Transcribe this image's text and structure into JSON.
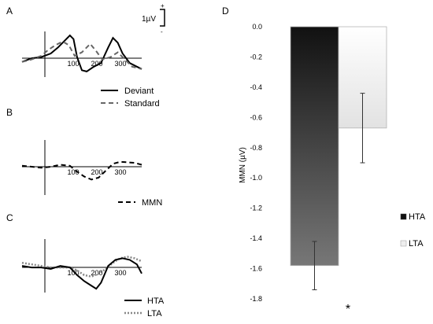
{
  "chart_data": [
    {
      "panel": "A",
      "type": "line",
      "panel_label": "A",
      "scale_bar": {
        "label": "1µV",
        "plus": "+",
        "minus": "-"
      },
      "x_ticks": [
        "100",
        "200",
        "300"
      ],
      "xlim": [
        -100,
        400
      ],
      "ylim": [
        -1.6,
        2.6
      ],
      "series": [
        {
          "name": "Deviant",
          "color": "#000000",
          "dash": "solid",
          "points": [
            [
              -100,
              -0.2
            ],
            [
              -60,
              0.1
            ],
            [
              -20,
              0.2
            ],
            [
              20,
              0.5
            ],
            [
              50,
              1.0
            ],
            [
              80,
              1.6
            ],
            [
              100,
              2.0
            ],
            [
              115,
              1.7
            ],
            [
              130,
              0.2
            ],
            [
              150,
              -0.9
            ],
            [
              170,
              -1.0
            ],
            [
              200,
              -0.6
            ],
            [
              230,
              -0.3
            ],
            [
              260,
              1.0
            ],
            [
              280,
              1.8
            ],
            [
              300,
              1.4
            ],
            [
              320,
              0.5
            ],
            [
              350,
              -0.3
            ],
            [
              380,
              -0.6
            ],
            [
              400,
              -0.8
            ]
          ]
        },
        {
          "name": "Standard",
          "color": "#666666",
          "dash": "dash",
          "points": [
            [
              -100,
              -0.2
            ],
            [
              -60,
              0.0
            ],
            [
              -20,
              0.3
            ],
            [
              10,
              0.8
            ],
            [
              40,
              1.2
            ],
            [
              70,
              1.5
            ],
            [
              95,
              1.2
            ],
            [
              120,
              0.3
            ],
            [
              150,
              0.6
            ],
            [
              185,
              1.3
            ],
            [
              210,
              0.7
            ],
            [
              235,
              0.0
            ],
            [
              270,
              0.2
            ],
            [
              300,
              0.6
            ],
            [
              330,
              0.0
            ],
            [
              360,
              -0.6
            ],
            [
              400,
              -0.8
            ]
          ]
        }
      ]
    },
    {
      "panel": "B",
      "type": "line",
      "panel_label": "B",
      "x_ticks": [
        "100",
        "200",
        "300"
      ],
      "xlim": [
        -100,
        400
      ],
      "ylim": [
        -1.6,
        1.6
      ],
      "series": [
        {
          "name": "MMN",
          "color": "#000000",
          "dash": "dash",
          "points": [
            [
              -100,
              0.1
            ],
            [
              -60,
              0.0
            ],
            [
              -20,
              -0.1
            ],
            [
              20,
              0.0
            ],
            [
              60,
              0.2
            ],
            [
              100,
              0.1
            ],
            [
              130,
              -0.5
            ],
            [
              160,
              -1.0
            ],
            [
              190,
              -1.3
            ],
            [
              220,
              -1.1
            ],
            [
              250,
              -0.4
            ],
            [
              280,
              0.3
            ],
            [
              310,
              0.5
            ],
            [
              340,
              0.45
            ],
            [
              370,
              0.4
            ],
            [
              400,
              0.2
            ]
          ]
        }
      ]
    },
    {
      "panel": "C",
      "type": "line",
      "panel_label": "C",
      "x_ticks": [
        "100",
        "200",
        "300"
      ],
      "xlim": [
        -100,
        400
      ],
      "ylim": [
        -1.8,
        1.6
      ],
      "series": [
        {
          "name": "HTA",
          "color": "#000000",
          "dash": "solid",
          "points": [
            [
              -100,
              0.1
            ],
            [
              -60,
              0.0
            ],
            [
              -20,
              0.0
            ],
            [
              20,
              -0.1
            ],
            [
              60,
              0.1
            ],
            [
              100,
              0.0
            ],
            [
              130,
              -0.5
            ],
            [
              160,
              -0.9
            ],
            [
              190,
              -1.2
            ],
            [
              210,
              -1.4
            ],
            [
              230,
              -1.0
            ],
            [
              260,
              0.1
            ],
            [
              290,
              0.5
            ],
            [
              320,
              0.6
            ],
            [
              350,
              0.5
            ],
            [
              380,
              0.2
            ],
            [
              400,
              -0.4
            ]
          ]
        },
        {
          "name": "LTA",
          "color": "#888888",
          "dash": "dot",
          "points": [
            [
              -100,
              0.3
            ],
            [
              -60,
              0.2
            ],
            [
              -20,
              0.1
            ],
            [
              20,
              0.0
            ],
            [
              60,
              0.0
            ],
            [
              100,
              0.0
            ],
            [
              130,
              -0.2
            ],
            [
              160,
              -0.5
            ],
            [
              190,
              -0.6
            ],
            [
              220,
              -0.4
            ],
            [
              250,
              -0.1
            ],
            [
              280,
              0.3
            ],
            [
              310,
              0.6
            ],
            [
              340,
              0.7
            ],
            [
              370,
              0.6
            ],
            [
              400,
              0.4
            ]
          ]
        }
      ]
    },
    {
      "panel": "D",
      "type": "bar",
      "panel_label": "D",
      "ylabel": "MMN (µV)",
      "ylim": [
        -1.8,
        0
      ],
      "y_ticks": [
        "0.0",
        "-0.2",
        "-0.4",
        "-0.6",
        "-0.8",
        "-1.0",
        "-1.2",
        "-1.4",
        "-1.6",
        "-1.8"
      ],
      "y_tick_values": [
        0.0,
        -0.2,
        -0.4,
        -0.6,
        -0.8,
        -1.0,
        -1.2,
        -1.4,
        -1.6,
        -1.8
      ],
      "categories": [
        "HTA",
        "LTA"
      ],
      "values": [
        -1.58,
        -0.67
      ],
      "errors": [
        0.16,
        0.23
      ],
      "colors": [
        "#1a1a1a",
        "#eeeeee"
      ],
      "significance": "*"
    }
  ]
}
